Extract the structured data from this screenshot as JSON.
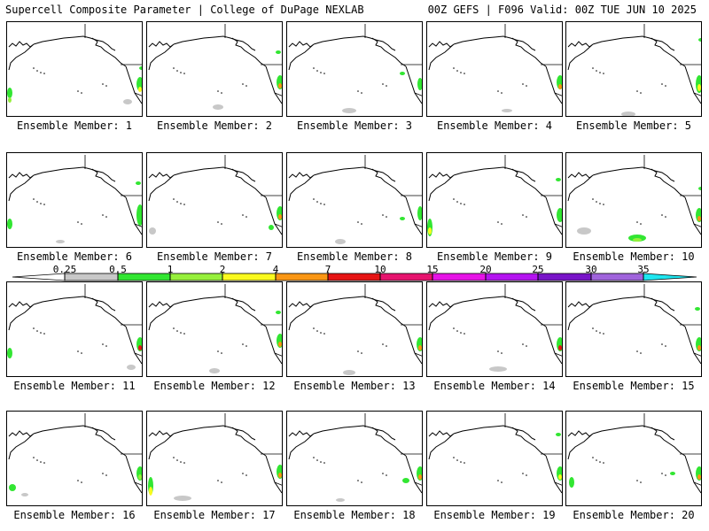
{
  "header": {
    "left_title": "Supercell Composite Parameter | College of DuPage NEXLAB",
    "right_title": "00Z GEFS | F096 Valid: 00Z TUE JUN 10 2025"
  },
  "members": [
    "Ensemble Member: 1",
    "Ensemble Member: 2",
    "Ensemble Member: 3",
    "Ensemble Member: 4",
    "Ensemble Member: 5",
    "Ensemble Member: 6",
    "Ensemble Member: 7",
    "Ensemble Member: 8",
    "Ensemble Member: 9",
    "Ensemble Member: 10",
    "Ensemble Member: 11",
    "Ensemble Member: 12",
    "Ensemble Member: 13",
    "Ensemble Member: 14",
    "Ensemble Member: 15",
    "Ensemble Member: 16",
    "Ensemble Member: 17",
    "Ensemble Member: 18",
    "Ensemble Member: 19",
    "Ensemble Member: 20"
  ],
  "colorbar": {
    "labels": [
      "0.25",
      "0.5",
      "1",
      "2",
      "4",
      "7",
      "10",
      "15",
      "20",
      "25",
      "30",
      "35"
    ],
    "colors": [
      "#ffffff",
      "#c8c8c8",
      "#32e632",
      "#96f03c",
      "#fafa1e",
      "#fa9614",
      "#e61414",
      "#e6146e",
      "#e614e6",
      "#b414f0",
      "#7814c8",
      "#a064dc",
      "#1ee6f0"
    ]
  },
  "map_colors": {
    "outline": "#000000",
    "low_gray": "#c8c8c8",
    "green": "#32e632",
    "light_green": "#96f03c",
    "yellow": "#fafa1e",
    "orange": "#fa9614",
    "red": "#e61414"
  }
}
